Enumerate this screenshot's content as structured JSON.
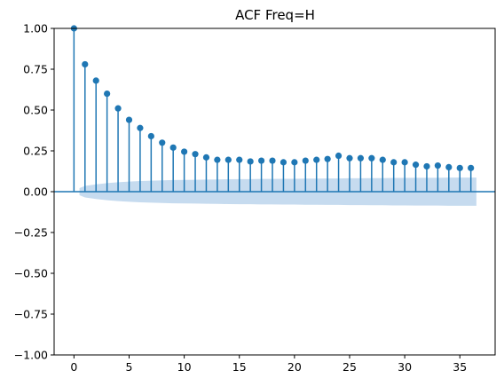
{
  "chart_data": {
    "type": "stem",
    "title": "ACF Freq=H",
    "xlabel": "",
    "ylabel": "",
    "xlim": [
      -1.8,
      38.2
    ],
    "ylim": [
      -1.0,
      1.0
    ],
    "x_ticks": [
      0,
      5,
      10,
      15,
      20,
      25,
      30,
      35
    ],
    "y_ticks": [
      -1.0,
      -0.75,
      -0.5,
      -0.25,
      0.0,
      0.25,
      0.5,
      0.75,
      1.0
    ],
    "x_tick_labels": [
      "0",
      "5",
      "10",
      "15",
      "20",
      "25",
      "30",
      "35"
    ],
    "y_tick_labels": [
      "−1.00",
      "−0.75",
      "−0.50",
      "−0.25",
      "0.00",
      "0.25",
      "0.50",
      "0.75",
      "1.00"
    ],
    "grid": false,
    "lags": [
      0,
      1,
      2,
      3,
      4,
      5,
      6,
      7,
      8,
      9,
      10,
      11,
      12,
      13,
      14,
      15,
      16,
      17,
      18,
      19,
      20,
      21,
      22,
      23,
      24,
      25,
      26,
      27,
      28,
      29,
      30,
      31,
      32,
      33,
      34,
      35,
      36
    ],
    "acf": [
      1.0,
      0.78,
      0.68,
      0.6,
      0.51,
      0.44,
      0.39,
      0.34,
      0.3,
      0.27,
      0.245,
      0.23,
      0.21,
      0.195,
      0.195,
      0.195,
      0.185,
      0.19,
      0.19,
      0.18,
      0.18,
      0.19,
      0.195,
      0.2,
      0.22,
      0.205,
      0.205,
      0.205,
      0.195,
      0.18,
      0.18,
      0.165,
      0.155,
      0.16,
      0.15,
      0.145,
      0.145
    ],
    "confidence_band": {
      "lags": [
        0.5,
        1,
        2,
        3,
        4,
        5,
        6,
        7,
        8,
        9,
        10,
        11,
        12,
        13,
        14,
        15,
        16,
        17,
        18,
        19,
        20,
        21,
        22,
        23,
        24,
        25,
        26,
        27,
        28,
        29,
        30,
        31,
        32,
        33,
        34,
        35,
        36.5
      ],
      "upper": [
        0.022,
        0.035,
        0.045,
        0.052,
        0.058,
        0.062,
        0.065,
        0.067,
        0.069,
        0.071,
        0.072,
        0.073,
        0.074,
        0.075,
        0.076,
        0.077,
        0.077,
        0.078,
        0.078,
        0.079,
        0.079,
        0.08,
        0.08,
        0.081,
        0.081,
        0.082,
        0.082,
        0.083,
        0.083,
        0.084,
        0.084,
        0.085,
        0.085,
        0.085,
        0.086,
        0.086,
        0.086
      ]
    },
    "colors": {
      "stem": "#1f77b4",
      "marker": "#1f77b4",
      "band": "#c6dbef",
      "zero_line": "#1f77b4"
    }
  }
}
